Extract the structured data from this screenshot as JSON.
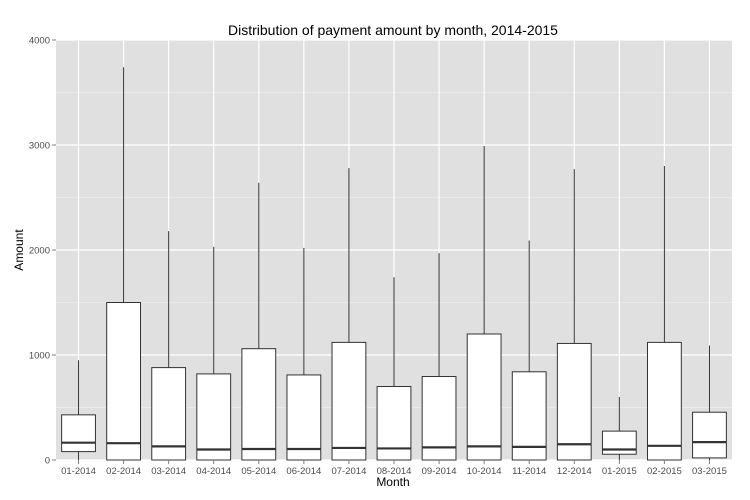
{
  "chart_data": {
    "type": "boxplot",
    "title": "Distribution of payment amount by month, 2014-2015",
    "xlabel": "Month",
    "ylabel": "Amount",
    "ylim": [
      0,
      4000
    ],
    "yticks": [
      0,
      1000,
      2000,
      3000,
      4000
    ],
    "grid": true,
    "legend": "none",
    "colors": {
      "panel": "#e0e0e0",
      "grid": "#ffffff",
      "box_fill": "#ffffff",
      "line": "#333333"
    },
    "categories": [
      "01-2014",
      "02-2014",
      "03-2014",
      "04-2014",
      "05-2014",
      "06-2014",
      "07-2014",
      "08-2014",
      "09-2014",
      "10-2014",
      "11-2014",
      "12-2014",
      "01-2015",
      "02-2015",
      "03-2015"
    ],
    "boxes": [
      {
        "category": "01-2014",
        "min": 0,
        "q1": 80,
        "median": 165,
        "q3": 430,
        "max": 950
      },
      {
        "category": "02-2014",
        "min": 0,
        "q1": 0,
        "median": 160,
        "q3": 1500,
        "max": 3740
      },
      {
        "category": "03-2014",
        "min": 0,
        "q1": 0,
        "median": 130,
        "q3": 880,
        "max": 2180
      },
      {
        "category": "04-2014",
        "min": 0,
        "q1": 0,
        "median": 100,
        "q3": 820,
        "max": 2030
      },
      {
        "category": "05-2014",
        "min": 0,
        "q1": 0,
        "median": 105,
        "q3": 1060,
        "max": 2640
      },
      {
        "category": "06-2014",
        "min": 0,
        "q1": 0,
        "median": 105,
        "q3": 810,
        "max": 2020
      },
      {
        "category": "07-2014",
        "min": 0,
        "q1": 0,
        "median": 115,
        "q3": 1120,
        "max": 2780
      },
      {
        "category": "08-2014",
        "min": 0,
        "q1": 0,
        "median": 110,
        "q3": 700,
        "max": 1740
      },
      {
        "category": "09-2014",
        "min": 0,
        "q1": 0,
        "median": 120,
        "q3": 795,
        "max": 1970
      },
      {
        "category": "10-2014",
        "min": 0,
        "q1": 0,
        "median": 130,
        "q3": 1200,
        "max": 2990
      },
      {
        "category": "11-2014",
        "min": 0,
        "q1": 0,
        "median": 125,
        "q3": 840,
        "max": 2090
      },
      {
        "category": "12-2014",
        "min": 0,
        "q1": 0,
        "median": 150,
        "q3": 1110,
        "max": 2770
      },
      {
        "category": "01-2015",
        "min": 0,
        "q1": 55,
        "median": 100,
        "q3": 275,
        "max": 600
      },
      {
        "category": "02-2015",
        "min": 0,
        "q1": 0,
        "median": 135,
        "q3": 1120,
        "max": 2800
      },
      {
        "category": "03-2015",
        "min": 0,
        "q1": 20,
        "median": 170,
        "q3": 455,
        "max": 1090
      }
    ]
  }
}
